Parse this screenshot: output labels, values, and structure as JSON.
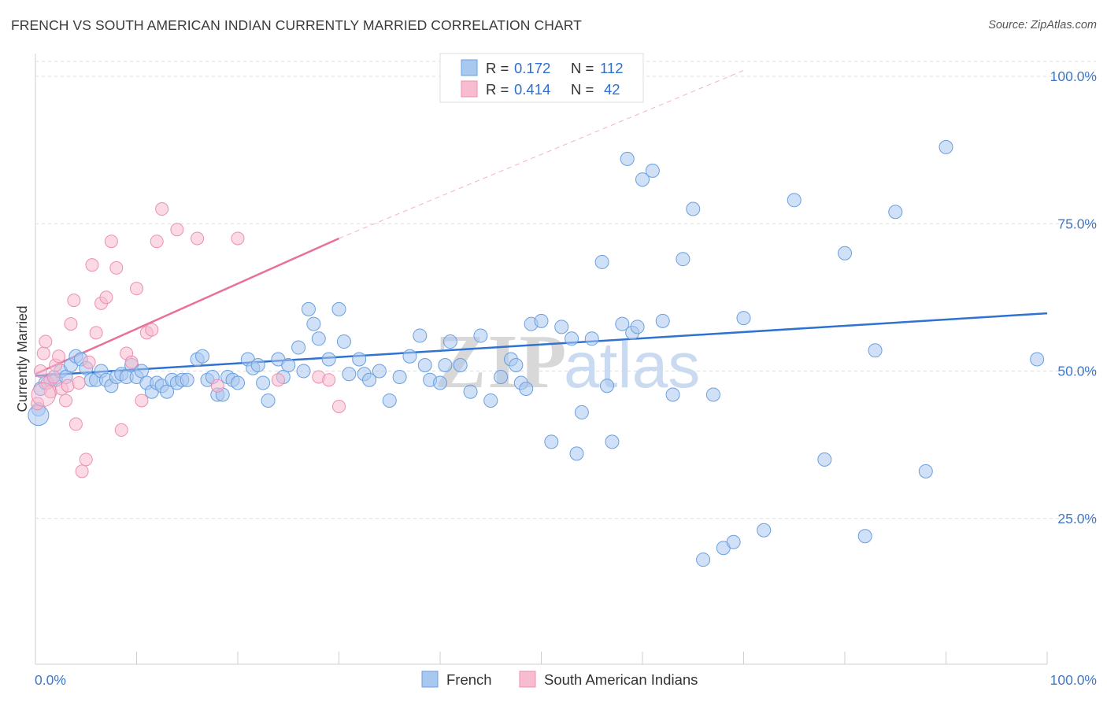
{
  "header": {
    "title": "FRENCH VS SOUTH AMERICAN INDIAN CURRENTLY MARRIED CORRELATION CHART",
    "source": "Source: ZipAtlas.com"
  },
  "legend_stats": [
    {
      "r_label": "R =",
      "r_value": "0.172",
      "n_label": "N =",
      "n_value": "112"
    },
    {
      "r_label": "R =",
      "r_value": "0.414",
      "n_label": "N =",
      "n_value": "42"
    }
  ],
  "watermark": {
    "zip": "ZIP",
    "atlas": "atlas"
  },
  "colors": {
    "french_fill": "#a9c8f0",
    "french_stroke": "#6a9fe0",
    "french_line": "#2f72d0",
    "sa_fill": "#f7bcd0",
    "sa_stroke": "#ec8fb0",
    "sa_line": "#e8709a",
    "grid": "#dcdcdc",
    "tick_text": "#3f77c8"
  },
  "chart_data": {
    "type": "scatter",
    "title": "FRENCH VS SOUTH AMERICAN INDIAN CURRENTLY MARRIED CORRELATION CHART",
    "xlabel": "",
    "ylabel": "Currently Married",
    "xlim": [
      0,
      100
    ],
    "ylim": [
      0,
      100
    ],
    "x_tick_labels": [
      "0.0%",
      "100.0%"
    ],
    "y_tick_labels": [
      "100.0%",
      "75.0%",
      "50.0%",
      "25.0%"
    ],
    "y_ticks": [
      100,
      75,
      50,
      25
    ],
    "grid": true,
    "legend_position": "top-center",
    "series": [
      {
        "name": "French",
        "color": "#a9c8f0",
        "trend": {
          "x": [
            0,
            100
          ],
          "y": [
            49.2,
            59.8
          ]
        },
        "points": [
          [
            0.3,
            43.5
          ],
          [
            0.5,
            47
          ],
          [
            1,
            48
          ],
          [
            1.5,
            48.5
          ],
          [
            2,
            48.5
          ],
          [
            2.5,
            50
          ],
          [
            3,
            49
          ],
          [
            3.5,
            51
          ],
          [
            4,
            52.5
          ],
          [
            4.5,
            52
          ],
          [
            5,
            50.5
          ],
          [
            5.5,
            48.5
          ],
          [
            6,
            48.5
          ],
          [
            6.5,
            50
          ],
          [
            7,
            48.5
          ],
          [
            7.5,
            47.5
          ],
          [
            8,
            49
          ],
          [
            8.5,
            49.5
          ],
          [
            9,
            49
          ],
          [
            9.5,
            51
          ],
          [
            10,
            49
          ],
          [
            10.5,
            50
          ],
          [
            11,
            48
          ],
          [
            11.5,
            46.5
          ],
          [
            12,
            48
          ],
          [
            12.5,
            47.5
          ],
          [
            13,
            46.5
          ],
          [
            13.5,
            48.5
          ],
          [
            14,
            48
          ],
          [
            14.5,
            48.5
          ],
          [
            15,
            48.5
          ],
          [
            16,
            52
          ],
          [
            16.5,
            52.5
          ],
          [
            17,
            48.5
          ],
          [
            17.5,
            49
          ],
          [
            18,
            46
          ],
          [
            18.5,
            46
          ],
          [
            19,
            49
          ],
          [
            19.5,
            48.5
          ],
          [
            20,
            48
          ],
          [
            21,
            52
          ],
          [
            21.5,
            50.5
          ],
          [
            22,
            51
          ],
          [
            22.5,
            48
          ],
          [
            23,
            45
          ],
          [
            24,
            52
          ],
          [
            24.5,
            49
          ],
          [
            25,
            51
          ],
          [
            26,
            54
          ],
          [
            26.5,
            50
          ],
          [
            27,
            60.5
          ],
          [
            27.5,
            58
          ],
          [
            28,
            55.5
          ],
          [
            29,
            52
          ],
          [
            30,
            60.5
          ],
          [
            30.5,
            55
          ],
          [
            31,
            49.5
          ],
          [
            32,
            52
          ],
          [
            32.5,
            49.5
          ],
          [
            33,
            48.5
          ],
          [
            34,
            50
          ],
          [
            35,
            45
          ],
          [
            36,
            49
          ],
          [
            37,
            52.5
          ],
          [
            38,
            56
          ],
          [
            38.5,
            51
          ],
          [
            39,
            48.5
          ],
          [
            40,
            48
          ],
          [
            40.5,
            51
          ],
          [
            41,
            55
          ],
          [
            42,
            51
          ],
          [
            43,
            46.5
          ],
          [
            44,
            56
          ],
          [
            45,
            45
          ],
          [
            46,
            49
          ],
          [
            47,
            52
          ],
          [
            47.5,
            51
          ],
          [
            48,
            48
          ],
          [
            48.5,
            47
          ],
          [
            49,
            58
          ],
          [
            50,
            58.5
          ],
          [
            51,
            38
          ],
          [
            52,
            57.5
          ],
          [
            53,
            55.5
          ],
          [
            53.5,
            36
          ],
          [
            54,
            43
          ],
          [
            55,
            55.5
          ],
          [
            56,
            68.5
          ],
          [
            56.5,
            47.5
          ],
          [
            57,
            38
          ],
          [
            58,
            58
          ],
          [
            58.5,
            86
          ],
          [
            59,
            56.5
          ],
          [
            59.5,
            57.5
          ],
          [
            60,
            82.5
          ],
          [
            61,
            84
          ],
          [
            62,
            58.5
          ],
          [
            63,
            46
          ],
          [
            64,
            69
          ],
          [
            65,
            77.5
          ],
          [
            66,
            18
          ],
          [
            67,
            46
          ],
          [
            68,
            20
          ],
          [
            69,
            21
          ],
          [
            70,
            59
          ],
          [
            72,
            23
          ],
          [
            75,
            79
          ],
          [
            78,
            35
          ],
          [
            80,
            70
          ],
          [
            82,
            22
          ],
          [
            83,
            53.5
          ],
          [
            85,
            77
          ],
          [
            88,
            33
          ],
          [
            90,
            88
          ],
          [
            99,
            52
          ]
        ]
      },
      {
        "name": "South American Indians",
        "color": "#f7bcd0",
        "trend": {
          "x": [
            0,
            30
          ],
          "y": [
            49.5,
            72.5
          ]
        },
        "trend_ext": {
          "x": [
            30,
            70
          ],
          "y": [
            72.5,
            101
          ]
        },
        "points": [
          [
            0.2,
            44.5
          ],
          [
            0.5,
            50
          ],
          [
            0.8,
            53
          ],
          [
            1,
            55
          ],
          [
            1.2,
            48
          ],
          [
            1.5,
            46.5
          ],
          [
            1.8,
            49
          ],
          [
            2,
            51
          ],
          [
            2.3,
            52.5
          ],
          [
            2.6,
            47
          ],
          [
            3,
            45
          ],
          [
            3.2,
            47.5
          ],
          [
            3.5,
            58
          ],
          [
            3.8,
            62
          ],
          [
            4,
            41
          ],
          [
            4.3,
            48
          ],
          [
            4.6,
            33
          ],
          [
            5,
            35
          ],
          [
            5.3,
            51.5
          ],
          [
            5.6,
            68
          ],
          [
            6,
            56.5
          ],
          [
            6.5,
            61.5
          ],
          [
            7,
            62.5
          ],
          [
            7.5,
            72
          ],
          [
            8,
            67.5
          ],
          [
            8.5,
            40
          ],
          [
            9,
            53
          ],
          [
            9.5,
            51.5
          ],
          [
            10,
            64
          ],
          [
            10.5,
            45
          ],
          [
            11,
            56.5
          ],
          [
            11.5,
            57
          ],
          [
            12,
            72
          ],
          [
            12.5,
            77.5
          ],
          [
            14,
            74
          ],
          [
            16,
            72.5
          ],
          [
            18,
            47.5
          ],
          [
            20,
            72.5
          ],
          [
            24,
            48.5
          ],
          [
            28,
            49
          ],
          [
            29,
            48.5
          ],
          [
            30,
            44
          ]
        ]
      }
    ]
  },
  "bottom_legend": [
    {
      "label": "French",
      "color": "#a9c8f0"
    },
    {
      "label": "South American Indians",
      "color": "#f7bcd0"
    }
  ]
}
